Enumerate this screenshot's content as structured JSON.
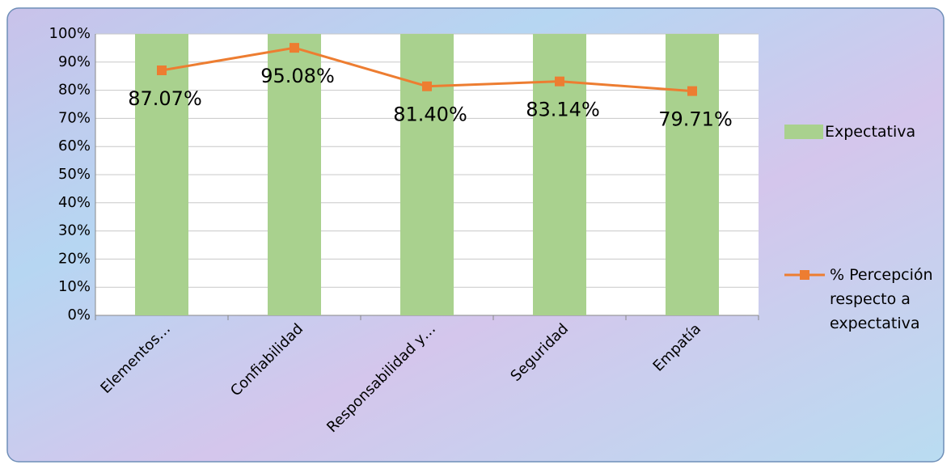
{
  "chart_data": {
    "type": "bar",
    "categories": [
      "Elementos…",
      "Confiabilidad",
      "Responsabilidad y…",
      "Seguridad",
      "Empatía"
    ],
    "series": [
      {
        "name": "Expectativa",
        "type": "bar",
        "color": "#a9d18e",
        "values": [
          100,
          100,
          100,
          100,
          100
        ]
      },
      {
        "name": "% Percepción respecto a expectativa",
        "type": "line",
        "color": "#ed7d31",
        "values": [
          87.07,
          95.08,
          81.4,
          83.14,
          79.71
        ],
        "value_labels": [
          "87.07%",
          "95.08%",
          "81.40%",
          "83.14%",
          "79.71%"
        ]
      }
    ],
    "ylim": [
      0,
      100
    ],
    "yticks": [
      {
        "value": 0,
        "label": "0%"
      },
      {
        "value": 10,
        "label": "10%"
      },
      {
        "value": 20,
        "label": "20%"
      },
      {
        "value": 30,
        "label": "30%"
      },
      {
        "value": 40,
        "label": "40%"
      },
      {
        "value": 50,
        "label": "50%"
      },
      {
        "value": 60,
        "label": "60%"
      },
      {
        "value": 70,
        "label": "70%"
      },
      {
        "value": 80,
        "label": "80%"
      },
      {
        "value": 90,
        "label": "90%"
      },
      {
        "value": 100,
        "label": "100%"
      }
    ],
    "grid": true,
    "legend": "right"
  }
}
